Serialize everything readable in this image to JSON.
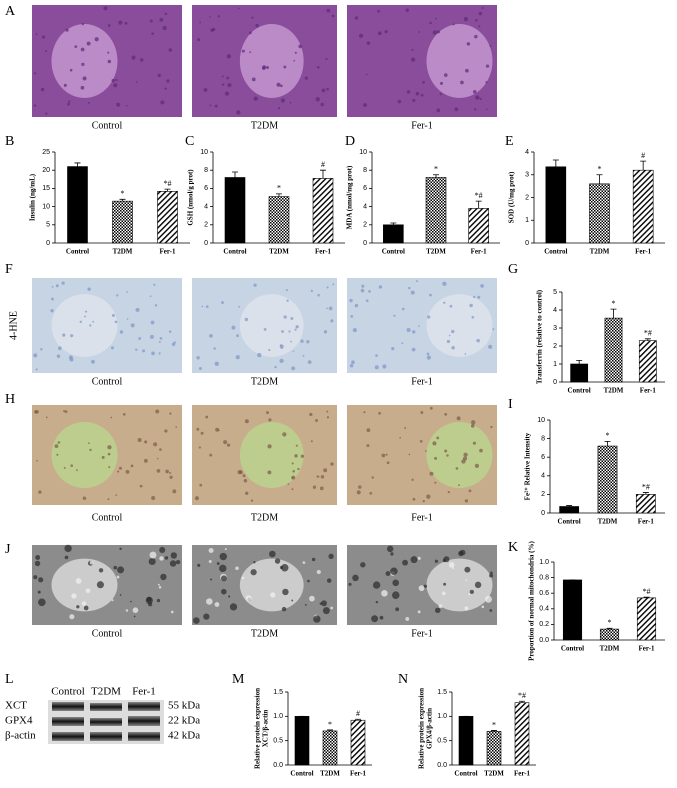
{
  "micrographs": [
    {
      "panel": "A",
      "captions": [
        "Control",
        "T2DM",
        "Fer-1"
      ]
    },
    {
      "panel": "F",
      "side_label": "4-HNE",
      "captions": [
        "Control",
        "T2DM",
        "Fer-1"
      ]
    },
    {
      "panel": "H",
      "captions": [
        "Control",
        "T2DM",
        "Fer-1"
      ]
    },
    {
      "panel": "J",
      "captions": [
        "Control",
        "T2DM",
        "Fer-1"
      ]
    }
  ],
  "western_blot": {
    "panel": "L",
    "lanes": [
      "Control",
      "T2DM",
      "Fer-1"
    ],
    "proteins": [
      {
        "name": "XCT",
        "size": "55 kDa"
      },
      {
        "name": "GPX4",
        "size": "22 kDa"
      },
      {
        "name": "β-actin",
        "size": "42 kDa"
      }
    ]
  },
  "chart_data": [
    {
      "type": "bar",
      "panel": "B",
      "ylabel": "Insulin (ng/mL)",
      "categories": [
        "Control",
        "T2DM",
        "Fer-1"
      ],
      "values": [
        21,
        11.5,
        14.2
      ],
      "errors": [
        1,
        0.5,
        0.6
      ],
      "annotations": [
        null,
        "*",
        "*#"
      ],
      "fills": [
        "solid",
        "checkered",
        "hatched"
      ],
      "ylim": [
        0,
        25
      ],
      "yticks": [
        0,
        5,
        10,
        15,
        20,
        25
      ]
    },
    {
      "type": "bar",
      "panel": "C",
      "ylabel": "GSH (nmol/g prot)",
      "categories": [
        "Control",
        "T2DM",
        "Fer-1"
      ],
      "values": [
        7.2,
        5.1,
        7.1
      ],
      "errors": [
        0.6,
        0.3,
        0.9
      ],
      "annotations": [
        null,
        "*",
        "#"
      ],
      "fills": [
        "solid",
        "checkered",
        "hatched"
      ],
      "ylim": [
        0,
        10
      ],
      "yticks": [
        0,
        2,
        4,
        6,
        8,
        10
      ]
    },
    {
      "type": "bar",
      "panel": "D",
      "ylabel": "MDA (nmol/mg prot)",
      "categories": [
        "Control",
        "T2DM",
        "Fer-1"
      ],
      "values": [
        2.0,
        7.2,
        3.8
      ],
      "errors": [
        0.2,
        0.3,
        0.8
      ],
      "annotations": [
        null,
        "*",
        "*#"
      ],
      "fills": [
        "solid",
        "checkered",
        "hatched"
      ],
      "ylim": [
        0,
        10
      ],
      "yticks": [
        0,
        2,
        4,
        6,
        8,
        10
      ]
    },
    {
      "type": "bar",
      "panel": "E",
      "ylabel": "SOD (U/mg prot)",
      "categories": [
        "Control",
        "T2DM",
        "Fer-1"
      ],
      "values": [
        3.35,
        2.6,
        3.2
      ],
      "errors": [
        0.3,
        0.4,
        0.4
      ],
      "annotations": [
        null,
        "*",
        "#"
      ],
      "fills": [
        "solid",
        "checkered",
        "hatched"
      ],
      "ylim": [
        0,
        4
      ],
      "yticks": [
        0,
        1,
        2,
        3,
        4
      ]
    },
    {
      "type": "bar",
      "panel": "G",
      "ylabel": "Transferrin (relative to control)",
      "categories": [
        "Control",
        "T2DM",
        "Fer-1"
      ],
      "values": [
        1.0,
        3.55,
        2.3
      ],
      "errors": [
        0.2,
        0.5,
        0.1
      ],
      "annotations": [
        null,
        "*",
        "*#"
      ],
      "fills": [
        "solid",
        "checkered",
        "hatched"
      ],
      "ylim": [
        0,
        5
      ],
      "yticks": [
        0,
        1,
        2,
        3,
        4,
        5
      ]
    },
    {
      "type": "bar",
      "panel": "I",
      "ylabel": "Fe²⁺ Relative Intensity",
      "categories": [
        "Control",
        "T2DM",
        "Fer-1"
      ],
      "values": [
        0.7,
        7.2,
        2.0
      ],
      "errors": [
        0.1,
        0.5,
        0.2
      ],
      "annotations": [
        null,
        "*",
        "*#"
      ],
      "fills": [
        "solid",
        "checkered",
        "hatched"
      ],
      "ylim": [
        0,
        10
      ],
      "yticks": [
        0,
        2,
        4,
        6,
        8,
        10
      ]
    },
    {
      "type": "bar",
      "panel": "K",
      "ylabel": "Proportion of normal mitochondria (%)",
      "categories": [
        "Control",
        "T2DM",
        "Fer-1"
      ],
      "values": [
        0.77,
        0.14,
        0.54
      ],
      "errors": [
        0,
        0.01,
        0.01
      ],
      "annotations": [
        null,
        "*",
        "*#"
      ],
      "fills": [
        "solid",
        "checkered",
        "hatched"
      ],
      "ylim": [
        0,
        1
      ],
      "yticks": [
        {
          "value": 0,
          "label": "0.0"
        },
        0.2,
        0.4,
        0.6,
        0.8,
        {
          "value": 1,
          "label": "1.0"
        }
      ]
    },
    {
      "type": "bar",
      "panel": "M",
      "ylabel": [
        "Relative protein expression",
        "XCT/β-actin"
      ],
      "categories": [
        "Control",
        "T2DM",
        "Fer-1"
      ],
      "values": [
        1.0,
        0.7,
        0.92
      ],
      "errors": [
        0,
        0.02,
        0.02
      ],
      "annotations": [
        null,
        "*",
        "#"
      ],
      "fills": [
        "solid",
        "checkered",
        "hatched"
      ],
      "ylim": [
        0,
        1.5
      ],
      "yticks": [
        {
          "value": 0,
          "label": "0.0"
        },
        0.5,
        {
          "value": 1,
          "label": "1.0"
        },
        1.5
      ]
    },
    {
      "type": "bar",
      "panel": "N",
      "ylabel": [
        "Relative protein expression",
        "GPX4/β-actin"
      ],
      "categories": [
        "Control",
        "T2DM",
        "Fer-1"
      ],
      "values": [
        1.0,
        0.69,
        1.28
      ],
      "errors": [
        0,
        0.02,
        0.03
      ],
      "annotations": [
        null,
        "*",
        "*#"
      ],
      "fills": [
        "solid",
        "checkered",
        "hatched"
      ],
      "ylim": [
        0,
        1.5
      ],
      "yticks": [
        {
          "value": 0,
          "label": "0.0"
        },
        0.5,
        {
          "value": 1,
          "label": "1.0"
        },
        1.5
      ]
    }
  ]
}
